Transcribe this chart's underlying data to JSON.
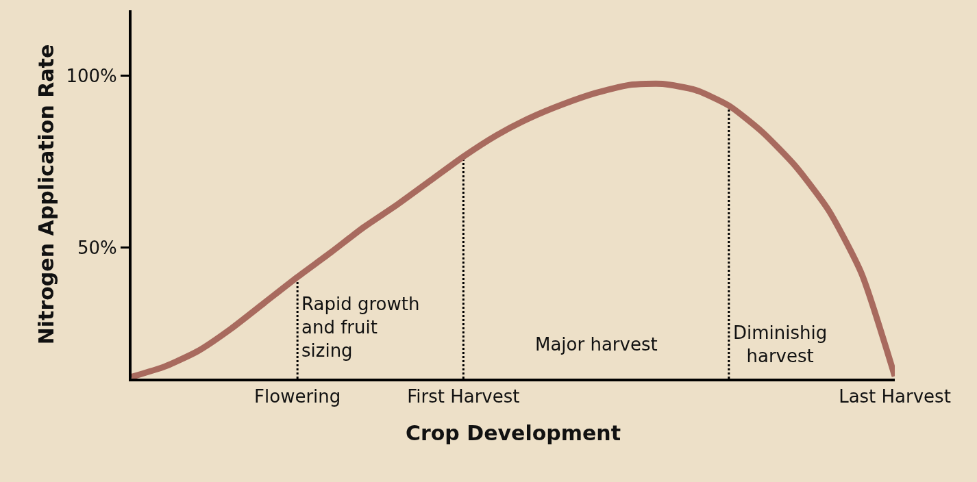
{
  "chart_data": {
    "type": "line",
    "xlabel": "Crop Development",
    "ylabel": "Nitrogen Application Rate",
    "categories": [
      null,
      null,
      null,
      null,
      null,
      "Flowering",
      null,
      null,
      null,
      null,
      "First Harvest",
      null,
      null,
      null,
      null,
      null,
      null,
      null,
      null,
      null,
      null,
      null,
      null,
      "Last Harvest"
    ],
    "series": [
      {
        "color": "#a86a5e",
        "values": [
          12.5,
          15.5,
          20,
          26.5,
          34,
          41.5,
          48.6,
          56,
          62.5,
          69.5,
          76.5,
          82.7,
          87.7,
          91.7,
          95,
          97.3,
          97.6,
          95.8,
          91.3,
          83.7,
          73.8,
          61,
          42.5,
          12.7
        ]
      }
    ],
    "ylim": [
      12,
      119
    ],
    "yticks": [
      {
        "value": 50,
        "label": "50%"
      },
      {
        "value": 100,
        "label": "100%"
      }
    ],
    "ref_lines": [
      {
        "axis": "x",
        "value": "Flowering",
        "line_style": "dotted",
        "color": "#000000"
      },
      {
        "axis": "x",
        "value": "First Harvest",
        "line_style": "dotted",
        "color": "#000000"
      }
    ],
    "annotations": [
      "Rapid growth\nand fruit\nsizing",
      "Major harvest",
      "Diminishig\nharvest"
    ],
    "marker": "none",
    "line_style": "solid"
  }
}
